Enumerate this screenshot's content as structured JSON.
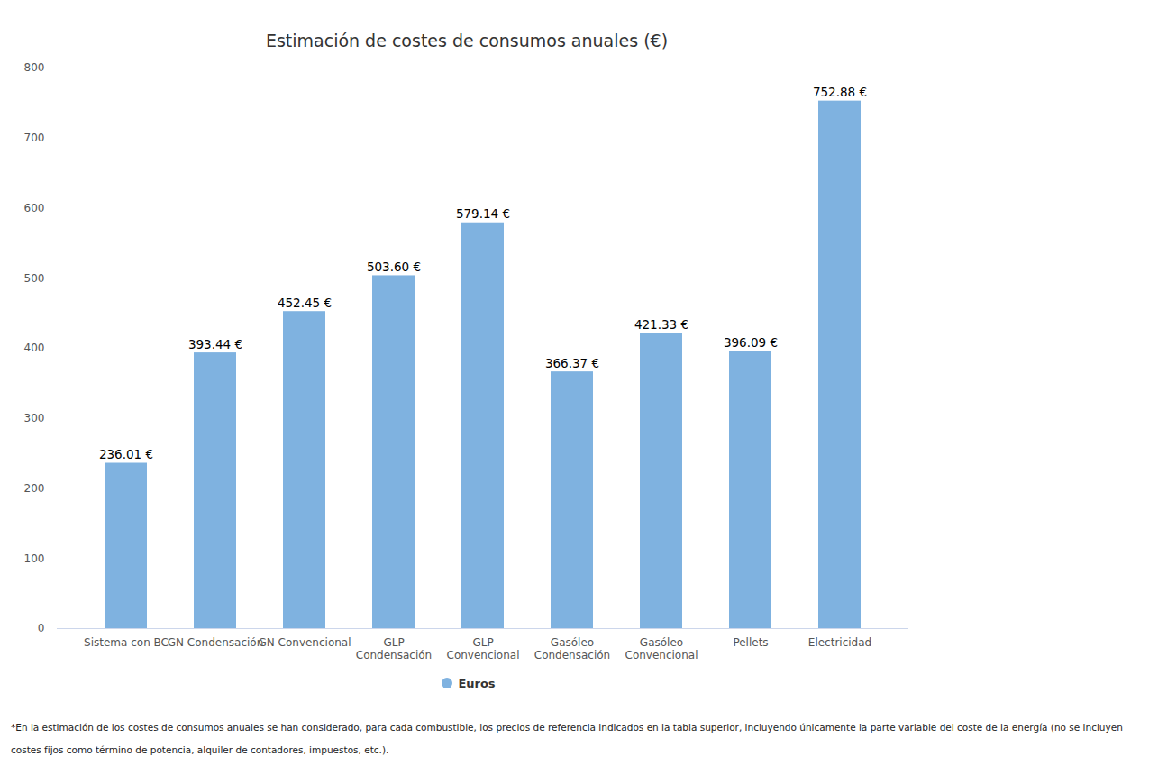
{
  "chart_data": {
    "type": "bar",
    "title": "Estimación de costes de consumos anuales (€)",
    "categories": [
      "Sistema con BC",
      "GN Condensación",
      "GN Convencional",
      "GLP Condensación",
      "GLP Convencional",
      "Gasóleo Condensación",
      "Gasóleo Convencional",
      "Pellets",
      "Electricidad"
    ],
    "series": [
      {
        "name": "Euros",
        "color": "#7fb2e0",
        "values": [
          236.01,
          393.44,
          452.45,
          503.6,
          579.14,
          366.37,
          421.33,
          396.09,
          752.88
        ],
        "value_labels": [
          "236.01 €",
          "393.44 €",
          "452.45 €",
          "503.60 €",
          "579.14 €",
          "366.37 €",
          "421.33 €",
          "396.09 €",
          "752.88 €"
        ]
      }
    ],
    "ylim": [
      0,
      800
    ],
    "yticks": [
      0,
      100,
      200,
      300,
      400,
      500,
      600,
      700,
      800
    ],
    "grid": false,
    "legend": "bottom",
    "data_labels": true,
    "caption": "*En la estimación de los costes de consumos anuales se han considerado, para cada combustible, los precios de referencia indicados en la tabla superior, incluyendo únicamente la parte variable del coste de la energía (no se incluyen costes fijos como término de potencia, alquiler de contadores, impuestos, etc.)."
  }
}
